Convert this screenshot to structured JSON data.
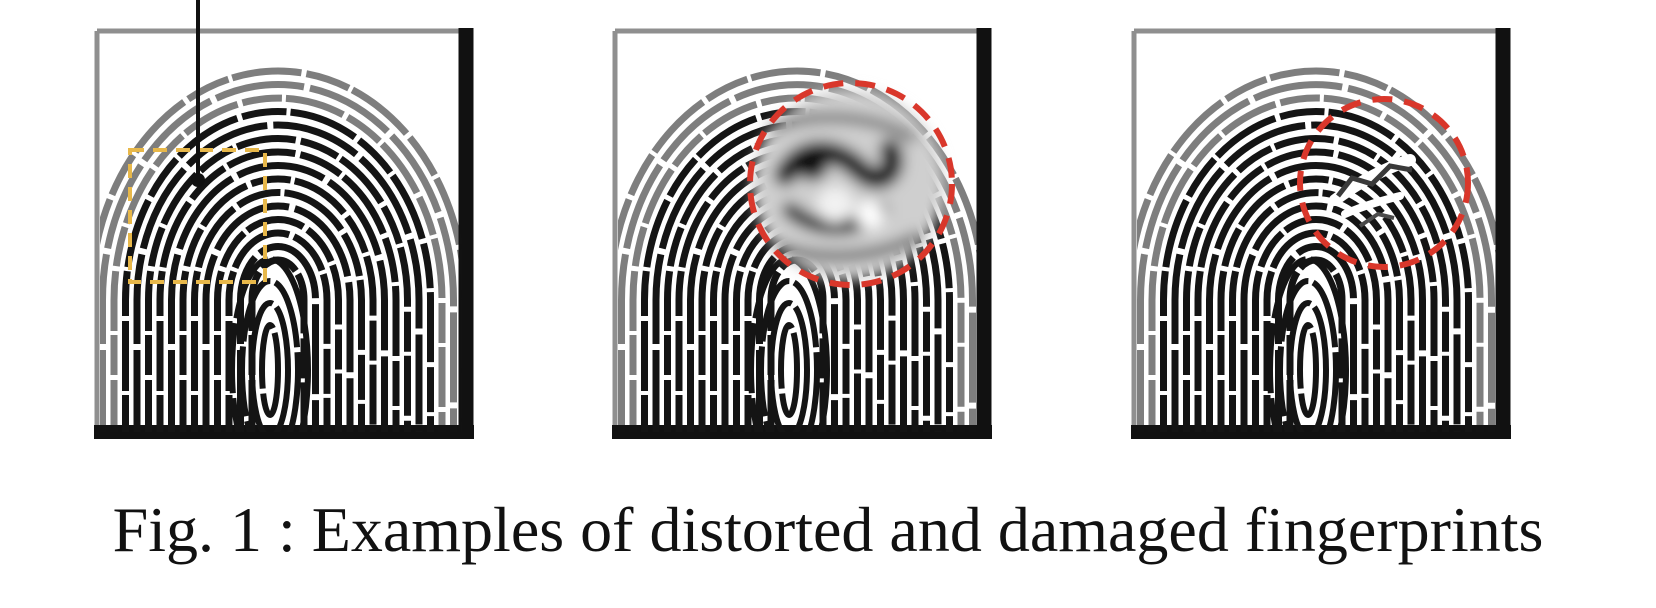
{
  "figure": {
    "caption": "Fig. 1 : Examples of distorted and damaged fingerprints",
    "panels": [
      {
        "id": "original",
        "markup": "dashed-rectangle",
        "markup_color": "#e8b84a",
        "has_pointer_line": true
      },
      {
        "id": "distorted",
        "markup": "dashed-circle",
        "markup_color": "#d9372b",
        "damage": "smudge"
      },
      {
        "id": "damaged",
        "markup": "dashed-circle",
        "markup_color": "#d9372b",
        "damage": "scar"
      }
    ]
  },
  "colors": {
    "frame_light": "#8f8f8f",
    "frame_dark": "#111111",
    "ink": "#141414",
    "paper": "#ffffff"
  }
}
